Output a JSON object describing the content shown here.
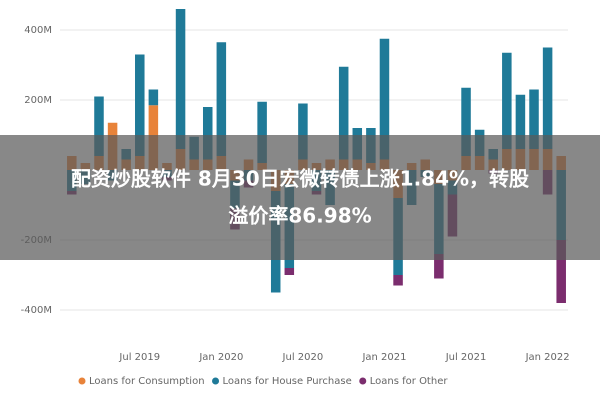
{
  "chart_data": {
    "type": "stacked-bar",
    "categories": [
      null,
      null,
      null,
      null,
      null,
      "Jul 2019",
      null,
      null,
      null,
      null,
      null,
      "Jan 2020",
      null,
      null,
      null,
      null,
      null,
      "Jul 2020",
      null,
      null,
      null,
      null,
      null,
      "Jan 2021",
      null,
      null,
      null,
      null,
      null,
      "Jul 2021",
      null,
      null,
      null,
      null,
      null,
      "Jan 2022",
      null
    ],
    "series": [
      {
        "name": "Loans for Consumption",
        "color": "#e8833a",
        "values": [
          40,
          20,
          40,
          135,
          30,
          40,
          185,
          20,
          60,
          30,
          30,
          40,
          -30,
          30,
          20,
          -60,
          -40,
          30,
          20,
          30,
          30,
          30,
          20,
          30,
          -80,
          20,
          30,
          -40,
          -30,
          40,
          40,
          30,
          60,
          60,
          60,
          60,
          40
        ]
      },
      {
        "name": "Loans for House Purchase",
        "color": "#1f7a98",
        "values": [
          -60,
          -40,
          170,
          -30,
          30,
          290,
          45,
          -20,
          400,
          65,
          150,
          325,
          -80,
          -30,
          175,
          -290,
          -240,
          160,
          -60,
          -100,
          265,
          90,
          100,
          345,
          -220,
          -100,
          -20,
          -200,
          -40,
          195,
          75,
          30,
          275,
          155,
          170,
          290,
          -200
        ]
      },
      {
        "name": "Loans for Other",
        "color": "#7b2d6e",
        "values": [
          -10,
          0,
          0,
          0,
          0,
          0,
          0,
          -10,
          0,
          0,
          0,
          0,
          -60,
          -20,
          0,
          0,
          -20,
          0,
          -10,
          0,
          0,
          0,
          0,
          0,
          -30,
          0,
          0,
          -70,
          -120,
          0,
          0,
          -10,
          0,
          0,
          0,
          -70,
          -180
        ]
      }
    ],
    "ylim": [
      -460,
      470
    ],
    "yticks": [
      {
        "value": -400,
        "label": "-400M"
      },
      {
        "value": -200,
        "label": "-200M"
      },
      {
        "value": 200,
        "label": "200M"
      },
      {
        "value": 400,
        "label": "400M"
      }
    ],
    "grid": true
  },
  "overlay": {
    "lines": [
      "配资炒股软件 8月30日宏微转债上涨1.84%，转股",
      "溢价率86.98%"
    ]
  }
}
